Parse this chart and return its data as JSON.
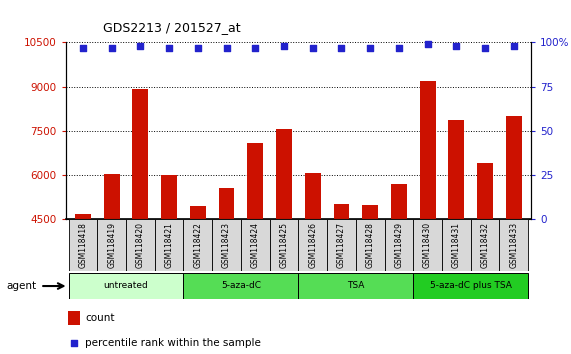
{
  "title": "GDS2213 / 201527_at",
  "samples": [
    "GSM118418",
    "GSM118419",
    "GSM118420",
    "GSM118421",
    "GSM118422",
    "GSM118423",
    "GSM118424",
    "GSM118425",
    "GSM118426",
    "GSM118427",
    "GSM118428",
    "GSM118429",
    "GSM118430",
    "GSM118431",
    "GSM118432",
    "GSM118433"
  ],
  "counts": [
    4680,
    6050,
    8920,
    6010,
    4950,
    5580,
    7100,
    7560,
    6060,
    5010,
    4980,
    5700,
    9200,
    7870,
    6420,
    8010
  ],
  "percentiles": [
    97,
    97,
    98,
    97,
    97,
    97,
    97,
    98,
    97,
    97,
    97,
    97,
    99,
    98,
    97,
    98
  ],
  "bar_color": "#cc1100",
  "dot_color": "#2222cc",
  "ylim_left": [
    4500,
    10500
  ],
  "ylim_right": [
    0,
    100
  ],
  "yticks_left": [
    4500,
    6000,
    7500,
    9000,
    10500
  ],
  "yticks_right": [
    0,
    25,
    50,
    75,
    100
  ],
  "groups": [
    {
      "label": "untreated",
      "start": 0,
      "end": 4,
      "color": "#ccffcc"
    },
    {
      "label": "5-aza-dC",
      "start": 4,
      "end": 8,
      "color": "#55dd55"
    },
    {
      "label": "TSA",
      "start": 8,
      "end": 12,
      "color": "#55dd55"
    },
    {
      "label": "5-aza-dC plus TSA",
      "start": 12,
      "end": 16,
      "color": "#22cc22"
    }
  ],
  "agent_label": "agent",
  "legend_count_label": "count",
  "legend_percentile_label": "percentile rank within the sample",
  "background_color": "#ffffff",
  "tick_label_color_left": "#cc1100",
  "tick_label_color_right": "#2222cc"
}
